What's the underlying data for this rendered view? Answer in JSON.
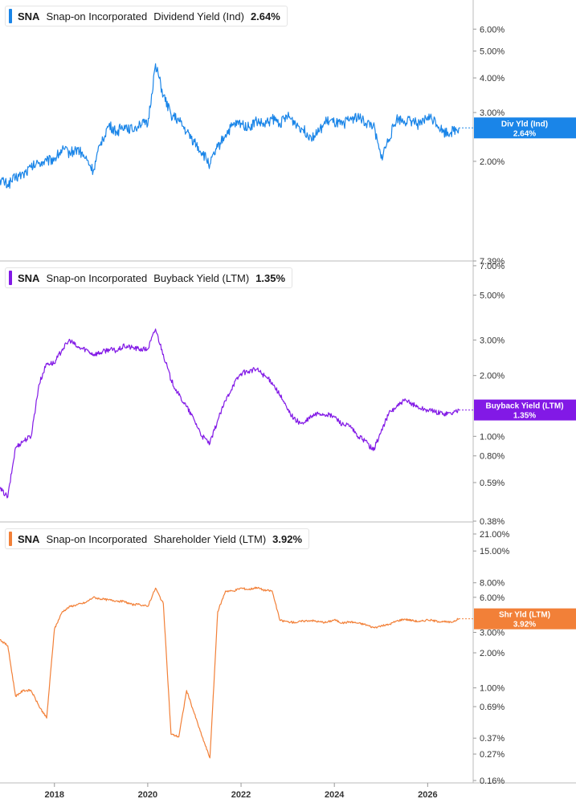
{
  "x_axis_labels": [
    "2018",
    "2020",
    "2022",
    "2024",
    "2026"
  ],
  "panels": [
    {
      "ticker": "SNA",
      "company": "Snap-on Incorporated",
      "metric": "Dividend Yield (Ind)",
      "current": "2.64%",
      "color": "#1a85e8",
      "flag_label": "Div Yld (Ind)",
      "flag_value": "2.64%",
      "y_ticks": [
        "6.00%",
        "5.00%",
        "4.00%",
        "3.00%",
        "2.00%"
      ]
    },
    {
      "ticker": "SNA",
      "company": "Snap-on Incorporated",
      "metric": "Buyback Yield (LTM)",
      "current": "1.35%",
      "color": "#8219e6",
      "flag_label": "Buyback Yield (LTM)",
      "flag_value": "1.35%",
      "y_ticks": [
        "7.39%",
        "7.00%",
        "5.00%",
        "3.00%",
        "2.00%",
        "1.00%",
        "0.80%",
        "0.59%",
        "0.38%"
      ]
    },
    {
      "ticker": "SNA",
      "company": "Snap-on Incorporated",
      "metric": "Shareholder Yield (LTM)",
      "current": "3.92%",
      "color": "#f28038",
      "flag_label": "Shr Yld (LTM)",
      "flag_value": "3.92%",
      "y_ticks": [
        "21.00%",
        "15.00%",
        "8.00%",
        "6.00%",
        "3.00%",
        "2.00%",
        "1.00%",
        "0.69%",
        "0.37%",
        "0.27%",
        "0.16%"
      ]
    }
  ],
  "chart_data": [
    {
      "type": "line",
      "title": "SNA Snap-on Incorporated Dividend Yield (Ind) 2.64%",
      "y_scale": "log",
      "ylim": [
        1.5,
        6.6
      ],
      "x_range": [
        "2016-11",
        "2026-12"
      ],
      "x": [
        "2016-11",
        "2017-01",
        "2017-03",
        "2017-05",
        "2017-07",
        "2017-09",
        "2017-11",
        "2018-01",
        "2018-03",
        "2018-05",
        "2018-07",
        "2018-09",
        "2018-11",
        "2019-01",
        "2019-03",
        "2019-05",
        "2019-07",
        "2019-09",
        "2019-11",
        "2020-01",
        "2020-03",
        "2020-05",
        "2020-07",
        "2020-09",
        "2020-11",
        "2021-01",
        "2021-03",
        "2021-05",
        "2021-07",
        "2021-09",
        "2021-11",
        "2022-01",
        "2022-03",
        "2022-05",
        "2022-07",
        "2022-09",
        "2022-11",
        "2023-01",
        "2023-03",
        "2023-05",
        "2023-07",
        "2023-09",
        "2023-11",
        "2024-01",
        "2024-03",
        "2024-05",
        "2024-07",
        "2024-09",
        "2024-11",
        "2025-01",
        "2025-03",
        "2025-05",
        "2025-07",
        "2025-09",
        "2025-11",
        "2026-01",
        "2026-03",
        "2026-05",
        "2026-07",
        "2026-09"
      ],
      "values": [
        1.72,
        1.65,
        1.75,
        1.8,
        1.9,
        1.98,
        2.0,
        2.05,
        2.2,
        2.15,
        2.22,
        2.05,
        1.85,
        2.35,
        2.7,
        2.55,
        2.7,
        2.6,
        2.75,
        2.7,
        4.5,
        3.45,
        2.95,
        2.8,
        2.55,
        2.35,
        2.15,
        1.95,
        2.25,
        2.5,
        2.7,
        2.75,
        2.65,
        2.8,
        2.7,
        2.85,
        2.75,
        2.9,
        2.75,
        2.6,
        2.45,
        2.55,
        2.8,
        2.75,
        2.7,
        2.85,
        2.9,
        2.75,
        2.7,
        2.05,
        2.4,
        2.85,
        2.8,
        2.8,
        2.7,
        2.9,
        2.8,
        2.55,
        2.55,
        2.64
      ],
      "series": [
        {
          "name": "Dividend Yield (Ind)",
          "last": 2.64
        }
      ]
    },
    {
      "type": "line",
      "title": "SNA Snap-on Incorporated Buyback Yield (LTM) 1.35%",
      "y_scale": "log",
      "ylim": [
        0.38,
        7.39
      ],
      "x_range": [
        "2016-11",
        "2026-12"
      ],
      "x": [
        "2016-11",
        "2017-01",
        "2017-03",
        "2017-05",
        "2017-07",
        "2017-09",
        "2017-11",
        "2018-01",
        "2018-03",
        "2018-05",
        "2018-07",
        "2018-09",
        "2018-11",
        "2019-01",
        "2019-03",
        "2019-05",
        "2019-07",
        "2019-09",
        "2019-11",
        "2020-01",
        "2020-03",
        "2020-05",
        "2020-07",
        "2020-09",
        "2020-11",
        "2021-01",
        "2021-03",
        "2021-05",
        "2021-07",
        "2021-09",
        "2021-11",
        "2022-01",
        "2022-03",
        "2022-05",
        "2022-07",
        "2022-09",
        "2022-11",
        "2023-01",
        "2023-03",
        "2023-05",
        "2023-07",
        "2023-09",
        "2023-11",
        "2024-01",
        "2024-03",
        "2024-05",
        "2024-07",
        "2024-09",
        "2024-11",
        "2025-01",
        "2025-03",
        "2025-05",
        "2025-07",
        "2025-09",
        "2025-11",
        "2026-01",
        "2026-03",
        "2026-05",
        "2026-07",
        "2026-09"
      ],
      "values": [
        0.55,
        0.5,
        0.88,
        0.95,
        1.0,
        1.8,
        2.3,
        2.3,
        2.7,
        3.0,
        2.75,
        2.7,
        2.55,
        2.6,
        2.7,
        2.65,
        2.8,
        2.75,
        2.7,
        2.7,
        3.4,
        2.55,
        1.9,
        1.6,
        1.4,
        1.2,
        1.0,
        0.92,
        1.2,
        1.5,
        1.8,
        2.05,
        2.1,
        2.15,
        2.0,
        1.85,
        1.6,
        1.35,
        1.2,
        1.15,
        1.25,
        1.3,
        1.28,
        1.25,
        1.15,
        1.12,
        1.0,
        0.95,
        0.85,
        1.05,
        1.3,
        1.4,
        1.5,
        1.45,
        1.38,
        1.35,
        1.32,
        1.3,
        1.3,
        1.35
      ],
      "series": [
        {
          "name": "Buyback Yield (LTM)",
          "last": 1.35
        }
      ]
    },
    {
      "type": "line",
      "title": "SNA Snap-on Incorporated Shareholder Yield (LTM) 3.92%",
      "y_scale": "log",
      "ylim": [
        0.16,
        21.0
      ],
      "x_range": [
        "2016-11",
        "2026-12"
      ],
      "x": [
        "2016-11",
        "2017-01",
        "2017-03",
        "2017-05",
        "2017-07",
        "2017-09",
        "2017-11",
        "2018-01",
        "2018-03",
        "2018-05",
        "2018-07",
        "2018-09",
        "2018-11",
        "2019-01",
        "2019-03",
        "2019-05",
        "2019-07",
        "2019-09",
        "2019-11",
        "2020-01",
        "2020-03",
        "2020-05",
        "2020-07",
        "2020-09",
        "2020-11",
        "2021-01",
        "2021-03",
        "2021-05",
        "2021-07",
        "2021-09",
        "2021-11",
        "2022-01",
        "2022-03",
        "2022-05",
        "2022-07",
        "2022-09",
        "2022-11",
        "2023-01",
        "2023-03",
        "2023-05",
        "2023-07",
        "2023-09",
        "2023-11",
        "2024-01",
        "2024-03",
        "2024-05",
        "2024-07",
        "2024-09",
        "2024-11",
        "2025-01",
        "2025-03",
        "2025-05",
        "2025-07",
        "2025-09",
        "2025-11",
        "2026-01",
        "2026-03",
        "2026-05",
        "2026-07",
        "2026-09"
      ],
      "values": [
        2.6,
        2.3,
        0.85,
        0.95,
        0.95,
        0.7,
        0.55,
        3.2,
        4.5,
        5.0,
        5.2,
        5.4,
        6.0,
        5.8,
        5.7,
        5.6,
        5.5,
        5.2,
        5.2,
        5.0,
        7.2,
        5.3,
        0.4,
        0.38,
        0.95,
        0.6,
        0.38,
        0.25,
        4.5,
        6.8,
        6.8,
        7.2,
        7.0,
        7.3,
        6.9,
        6.8,
        3.8,
        3.7,
        3.65,
        3.75,
        3.8,
        3.7,
        3.65,
        3.85,
        3.6,
        3.7,
        3.6,
        3.5,
        3.3,
        3.4,
        3.5,
        3.75,
        3.9,
        3.8,
        3.7,
        3.85,
        3.75,
        3.7,
        3.65,
        3.92
      ],
      "series": [
        {
          "name": "Shareholder Yield (LTM)",
          "last": 3.92
        }
      ]
    }
  ]
}
